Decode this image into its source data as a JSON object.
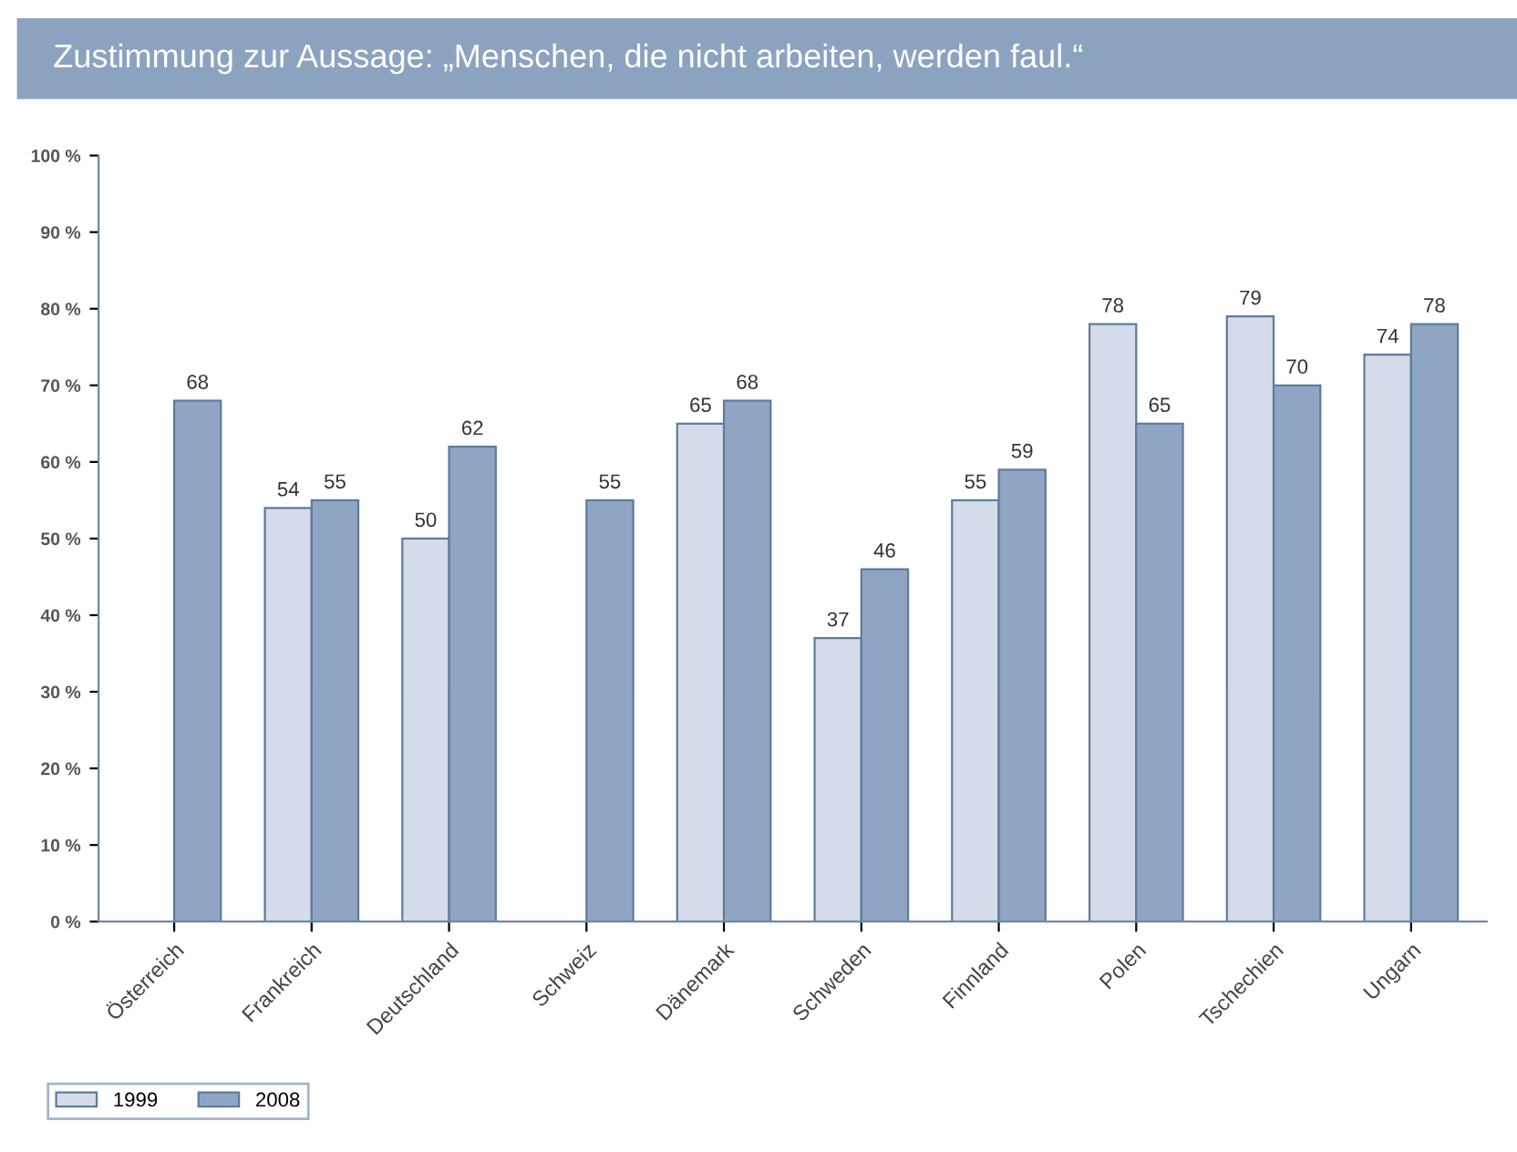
{
  "chart_data": {
    "type": "bar",
    "title": "Zustimmung zur Aussage: „Menschen, die nicht arbeiten, werden faul.“",
    "categories": [
      "Österreich",
      "Frankreich",
      "Deutschland",
      "Schweiz",
      "Dänemark",
      "Schweden",
      "Finnland",
      "Polen",
      "Tschechien",
      "Ungarn"
    ],
    "series": [
      {
        "name": "1999",
        "color": "#d3dce8",
        "values": [
          null,
          54,
          50,
          null,
          65,
          37,
          55,
          78,
          79,
          74
        ]
      },
      {
        "name": "2008",
        "color": "#8fa5c3",
        "values": [
          68,
          55,
          62,
          55,
          68,
          46,
          59,
          65,
          70,
          78
        ]
      }
    ],
    "ylim": [
      0,
      100
    ],
    "yticks": [
      {
        "value": 0,
        "label": "0 %"
      },
      {
        "value": 10,
        "label": "10 %"
      },
      {
        "value": 20,
        "label": "20 %"
      },
      {
        "value": 30,
        "label": "30 %"
      },
      {
        "value": 40,
        "label": "40 %"
      },
      {
        "value": 50,
        "label": "50 %"
      },
      {
        "value": 60,
        "label": "60 %"
      },
      {
        "value": 70,
        "label": "70 %"
      },
      {
        "value": 80,
        "label": "80 %"
      },
      {
        "value": 90,
        "label": "90 %"
      },
      {
        "value": 100,
        "label": "100 %"
      }
    ],
    "data_labels": true,
    "grid": false,
    "legend": "bottom left"
  }
}
